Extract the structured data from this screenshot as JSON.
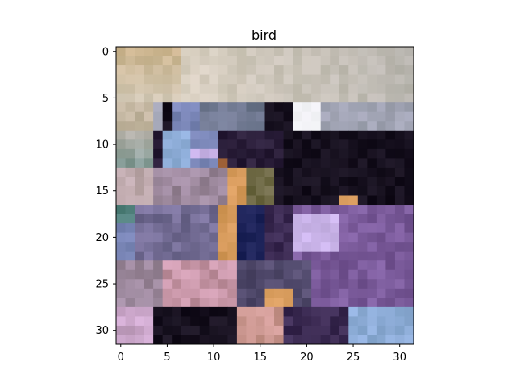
{
  "chart_data": {
    "type": "heatmap",
    "title": "bird",
    "xlabel": "",
    "ylabel": "",
    "xlim": [
      -0.5,
      31.5
    ],
    "ylim": [
      31.5,
      -0.5
    ],
    "xticks": [
      0,
      5,
      10,
      15,
      20,
      25,
      30
    ],
    "yticks": [
      0,
      5,
      10,
      15,
      20,
      25,
      30
    ],
    "grid": false,
    "image_size": [
      32,
      32
    ],
    "description_note": "",
    "palette": {
      "sky_light": "#d8cfc0",
      "sky_warm": "#cbb48e",
      "sky_gray": "#b9b6b0",
      "blue_mid": "#7a86b7",
      "blue_light": "#8faed9",
      "navy": "#1d2359",
      "dark": "#16101e",
      "purple_dark": "#3b2a52",
      "purple_mid": "#7a5a9a",
      "lavender": "#c9b3e8",
      "brown": "#a2643c",
      "teal": "#4f7f7a",
      "white": "#f4f4f8",
      "pink": "#c695a6",
      "orange": "#d79b5c",
      "gray_blue": "#6f7890",
      "olive": "#6f6a46"
    }
  },
  "axes_frame": {
    "spine_color": "#000000"
  }
}
